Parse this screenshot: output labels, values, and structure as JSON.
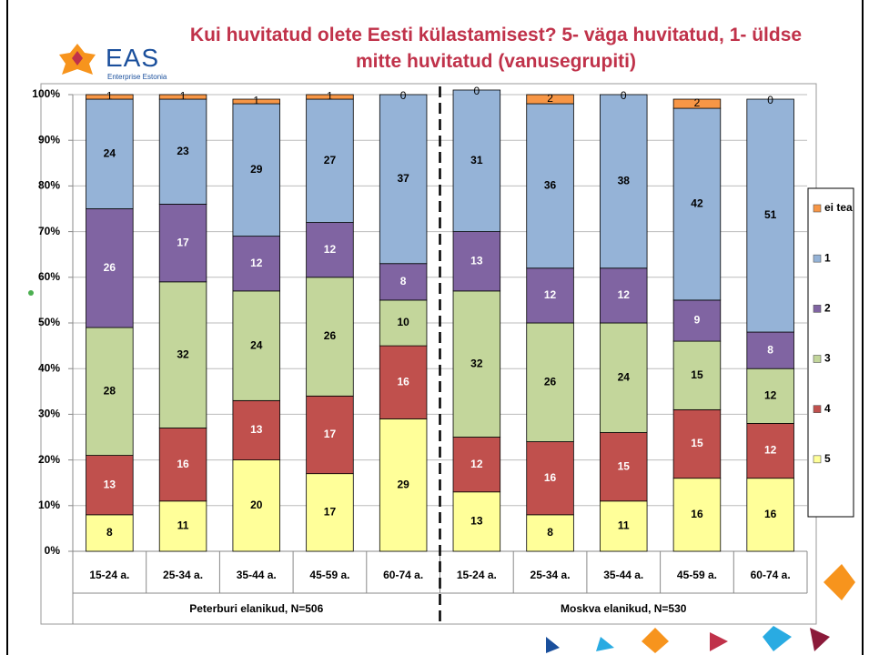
{
  "logo": {
    "name": "EAS",
    "subtitle": "Enterprise Estonia"
  },
  "chart_data": {
    "type": "stacked-bar",
    "title": "Kui huvitatud olete Eesti külastamisest? 5- väga huvitatud, 1- üldse mitte huvitatud (vanusegrupiti)",
    "categories": [
      "15-24 a.",
      "25-34 a.",
      "35-44 a.",
      "45-59 a.",
      "60-74 a.",
      "15-24 a.",
      "25-34 a.",
      "35-44 a.",
      "45-59 a.",
      "60-74 a."
    ],
    "groups": [
      "Peterburi elanikud, N=506",
      "Moskva elanikud, N=530"
    ],
    "series": [
      {
        "name": "5",
        "color": "#ffff99",
        "values": [
          8,
          11,
          20,
          17,
          29,
          13,
          8,
          11,
          16,
          16
        ]
      },
      {
        "name": "4",
        "color": "#c0504d",
        "values": [
          13,
          16,
          13,
          17,
          16,
          12,
          16,
          15,
          15,
          12
        ]
      },
      {
        "name": "3",
        "color": "#c3d69b",
        "values": [
          28,
          32,
          24,
          26,
          10,
          32,
          26,
          24,
          15,
          12
        ]
      },
      {
        "name": "2",
        "color": "#8064a2",
        "values": [
          26,
          17,
          12,
          12,
          8,
          13,
          12,
          12,
          9,
          8
        ]
      },
      {
        "name": "1",
        "color": "#95b3d7",
        "values": [
          24,
          23,
          29,
          27,
          37,
          31,
          36,
          38,
          42,
          51
        ]
      },
      {
        "name": "ei tea",
        "color": "#f79646",
        "values": [
          1,
          1,
          1,
          1,
          0,
          0,
          2,
          0,
          2,
          0
        ]
      }
    ],
    "ylim": [
      0,
      100
    ],
    "yticks": [
      {
        "value": 0,
        "label": "0%"
      },
      {
        "value": 10,
        "label": "10%"
      },
      {
        "value": 20,
        "label": "20%"
      },
      {
        "value": 30,
        "label": "30%"
      },
      {
        "value": 40,
        "label": "40%"
      },
      {
        "value": 50,
        "label": "50%"
      },
      {
        "value": 60,
        "label": "60%"
      },
      {
        "value": 70,
        "label": "70%"
      },
      {
        "value": 80,
        "label": "80%"
      },
      {
        "value": 90,
        "label": "90%"
      },
      {
        "value": 100,
        "label": "100%"
      }
    ],
    "grid": true,
    "legend": "right"
  }
}
